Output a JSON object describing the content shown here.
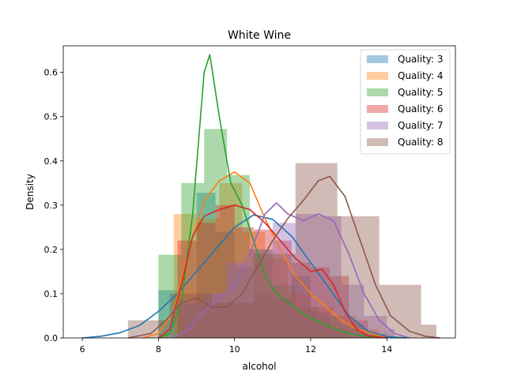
{
  "chart_data": {
    "type": "histogram-kde",
    "title": "White Wine",
    "xlabel": "alcohol",
    "ylabel": "Density",
    "xlim": [
      5.5,
      15.8
    ],
    "ylim": [
      0,
      0.66
    ],
    "xticks": [
      6,
      8,
      10,
      12,
      14
    ],
    "yticks": [
      0.0,
      0.1,
      0.2,
      0.3,
      0.4,
      0.5,
      0.6
    ],
    "ytick_labels": [
      "0.0",
      "0.1",
      "0.2",
      "0.3",
      "0.4",
      "0.5",
      "0.6"
    ],
    "legend_position": "top-right",
    "grid": false,
    "series": [
      {
        "name": "Quality: 3",
        "color": "#1f77b4",
        "bins": [
          [
            8.0,
            8.5,
            0.108
          ],
          [
            8.5,
            9.0,
            0.075
          ],
          [
            9.0,
            9.5,
            0.328
          ],
          [
            9.5,
            10.0,
            0.24
          ],
          [
            10.0,
            10.5,
            0.16
          ],
          [
            10.5,
            11.0,
            0.1
          ],
          [
            11.0,
            11.5,
            0.09
          ],
          [
            11.5,
            12.0,
            0.14
          ],
          [
            12.0,
            12.5,
            0.06
          ],
          [
            12.5,
            13.0,
            0.02
          ]
        ],
        "kde": [
          [
            6.0,
            0.0
          ],
          [
            6.5,
            0.004
          ],
          [
            7.0,
            0.012
          ],
          [
            7.5,
            0.028
          ],
          [
            8.0,
            0.06
          ],
          [
            8.5,
            0.1
          ],
          [
            9.0,
            0.15
          ],
          [
            9.5,
            0.2
          ],
          [
            10.0,
            0.25
          ],
          [
            10.5,
            0.278
          ],
          [
            11.0,
            0.268
          ],
          [
            11.5,
            0.23
          ],
          [
            12.0,
            0.17
          ],
          [
            12.5,
            0.11
          ],
          [
            13.0,
            0.05
          ],
          [
            13.5,
            0.015
          ],
          [
            14.0,
            0.003
          ],
          [
            14.5,
            0.0
          ]
        ]
      },
      {
        "name": "Quality: 4",
        "color": "#ff7f0e",
        "bins": [
          [
            8.4,
            9.0,
            0.28
          ],
          [
            9.0,
            9.6,
            0.27
          ],
          [
            9.6,
            10.2,
            0.35
          ],
          [
            10.2,
            10.8,
            0.24
          ],
          [
            10.8,
            11.4,
            0.18
          ],
          [
            11.4,
            12.0,
            0.1
          ],
          [
            12.0,
            12.6,
            0.07
          ],
          [
            12.6,
            13.2,
            0.05
          ],
          [
            13.2,
            13.8,
            0.02
          ]
        ],
        "kde": [
          [
            7.6,
            0.0
          ],
          [
            8.0,
            0.01
          ],
          [
            8.4,
            0.06
          ],
          [
            8.8,
            0.2
          ],
          [
            9.2,
            0.31
          ],
          [
            9.6,
            0.355
          ],
          [
            10.0,
            0.375
          ],
          [
            10.4,
            0.35
          ],
          [
            10.8,
            0.27
          ],
          [
            11.2,
            0.2
          ],
          [
            11.6,
            0.14
          ],
          [
            12.0,
            0.1
          ],
          [
            12.4,
            0.07
          ],
          [
            12.8,
            0.04
          ],
          [
            13.2,
            0.02
          ],
          [
            13.6,
            0.01
          ],
          [
            14.0,
            0.0
          ]
        ]
      },
      {
        "name": "Quality: 5",
        "color": "#2ca02c",
        "bins": [
          [
            8.0,
            8.6,
            0.188
          ],
          [
            8.6,
            9.2,
            0.35
          ],
          [
            9.2,
            9.8,
            0.472
          ],
          [
            9.8,
            10.4,
            0.368
          ],
          [
            10.4,
            11.0,
            0.2
          ],
          [
            11.0,
            11.6,
            0.12
          ],
          [
            11.6,
            12.2,
            0.07
          ],
          [
            12.2,
            12.8,
            0.05
          ],
          [
            12.8,
            13.4,
            0.03
          ],
          [
            13.4,
            14.0,
            0.01
          ]
        ],
        "kde": [
          [
            8.0,
            0.0
          ],
          [
            8.3,
            0.01
          ],
          [
            8.6,
            0.08
          ],
          [
            8.9,
            0.28
          ],
          [
            9.2,
            0.6
          ],
          [
            9.35,
            0.64
          ],
          [
            9.6,
            0.5
          ],
          [
            9.9,
            0.35
          ],
          [
            10.2,
            0.3
          ],
          [
            10.5,
            0.22
          ],
          [
            10.8,
            0.14
          ],
          [
            11.1,
            0.1
          ],
          [
            11.4,
            0.08
          ],
          [
            11.7,
            0.06
          ],
          [
            12.0,
            0.045
          ],
          [
            12.5,
            0.025
          ],
          [
            13.0,
            0.01
          ],
          [
            13.5,
            0.003
          ],
          [
            14.0,
            0.0
          ]
        ]
      },
      {
        "name": "Quality: 6",
        "color": "#d62728",
        "bins": [
          [
            8.5,
            9.0,
            0.22
          ],
          [
            9.0,
            9.5,
            0.26
          ],
          [
            9.5,
            10.0,
            0.3
          ],
          [
            10.0,
            10.5,
            0.25
          ],
          [
            10.5,
            11.0,
            0.245
          ],
          [
            11.0,
            11.5,
            0.22
          ],
          [
            11.5,
            12.0,
            0.17
          ],
          [
            12.0,
            12.5,
            0.16
          ],
          [
            12.5,
            13.0,
            0.14
          ],
          [
            13.0,
            13.5,
            0.04
          ]
        ],
        "kde": [
          [
            8.0,
            0.0
          ],
          [
            8.3,
            0.02
          ],
          [
            8.6,
            0.12
          ],
          [
            8.9,
            0.23
          ],
          [
            9.2,
            0.275
          ],
          [
            9.6,
            0.29
          ],
          [
            10.0,
            0.3
          ],
          [
            10.4,
            0.29
          ],
          [
            10.8,
            0.26
          ],
          [
            11.2,
            0.22
          ],
          [
            11.6,
            0.18
          ],
          [
            12.0,
            0.15
          ],
          [
            12.3,
            0.155
          ],
          [
            12.6,
            0.12
          ],
          [
            12.9,
            0.06
          ],
          [
            13.2,
            0.02
          ],
          [
            13.5,
            0.005
          ],
          [
            14.0,
            0.0
          ]
        ]
      },
      {
        "name": "Quality: 7",
        "color": "#9467bd",
        "bins": [
          [
            8.6,
            9.2,
            0.08
          ],
          [
            9.2,
            9.8,
            0.1
          ],
          [
            9.8,
            10.4,
            0.17
          ],
          [
            10.4,
            11.0,
            0.2
          ],
          [
            11.0,
            11.6,
            0.26
          ],
          [
            11.6,
            12.2,
            0.28
          ],
          [
            12.2,
            12.8,
            0.275
          ],
          [
            12.8,
            13.4,
            0.12
          ],
          [
            13.4,
            14.0,
            0.05
          ],
          [
            14.0,
            14.2,
            0.02
          ]
        ],
        "kde": [
          [
            8.4,
            0.0
          ],
          [
            8.8,
            0.02
          ],
          [
            9.2,
            0.06
          ],
          [
            9.6,
            0.09
          ],
          [
            10.0,
            0.12
          ],
          [
            10.4,
            0.19
          ],
          [
            10.8,
            0.28
          ],
          [
            11.1,
            0.305
          ],
          [
            11.4,
            0.28
          ],
          [
            11.8,
            0.265
          ],
          [
            12.2,
            0.28
          ],
          [
            12.6,
            0.265
          ],
          [
            13.0,
            0.19
          ],
          [
            13.4,
            0.1
          ],
          [
            13.8,
            0.04
          ],
          [
            14.2,
            0.01
          ],
          [
            14.6,
            0.0
          ]
        ]
      },
      {
        "name": "Quality: 8",
        "color": "#8c564b",
        "bins": [
          [
            7.2,
            8.3,
            0.04
          ],
          [
            8.3,
            9.4,
            0.1
          ],
          [
            9.4,
            10.5,
            0.08
          ],
          [
            10.5,
            11.6,
            0.19
          ],
          [
            11.6,
            12.7,
            0.395
          ],
          [
            12.7,
            13.8,
            0.275
          ],
          [
            13.8,
            14.9,
            0.12
          ],
          [
            14.9,
            15.3,
            0.03
          ]
        ],
        "kde": [
          [
            7.2,
            0.0
          ],
          [
            7.8,
            0.01
          ],
          [
            8.2,
            0.04
          ],
          [
            8.6,
            0.08
          ],
          [
            9.0,
            0.09
          ],
          [
            9.4,
            0.07
          ],
          [
            9.8,
            0.07
          ],
          [
            10.2,
            0.1
          ],
          [
            10.6,
            0.16
          ],
          [
            11.0,
            0.22
          ],
          [
            11.4,
            0.27
          ],
          [
            11.8,
            0.31
          ],
          [
            12.2,
            0.355
          ],
          [
            12.5,
            0.365
          ],
          [
            12.9,
            0.32
          ],
          [
            13.3,
            0.22
          ],
          [
            13.7,
            0.12
          ],
          [
            14.1,
            0.05
          ],
          [
            14.6,
            0.015
          ],
          [
            15.0,
            0.004
          ],
          [
            15.4,
            0.0
          ]
        ]
      }
    ]
  }
}
